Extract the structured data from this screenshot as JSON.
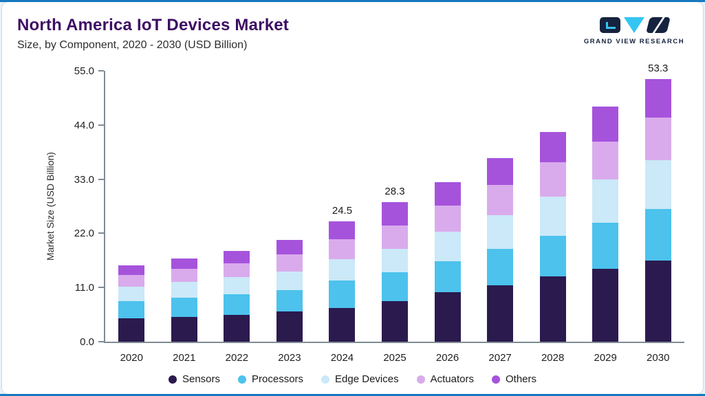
{
  "header": {
    "title": "North America IoT Devices Market",
    "subtitle": "Size, by Component, 2020 - 2030 (USD Billion)"
  },
  "logo": {
    "text": "GRAND VIEW RESEARCH"
  },
  "colors": {
    "title_color": "#3d0e63",
    "frame_accent": "#1779c0",
    "logo_navy": "#15233f",
    "logo_cyan": "#35c5f2"
  },
  "chart_data": {
    "type": "bar",
    "stacked": true,
    "title": "North America IoT Devices Market",
    "subtitle": "Size, by Component, 2020 - 2030 (USD Billion)",
    "xlabel": "",
    "ylabel": "Market Size (USD Billion)",
    "ylim": [
      0,
      55
    ],
    "ytick_labels": [
      "0.0",
      "11.0",
      "22.0",
      "33.0",
      "44.0",
      "55.0"
    ],
    "grid": false,
    "legend_position": "bottom",
    "categories": [
      "2020",
      "2021",
      "2022",
      "2023",
      "2024",
      "2025",
      "2026",
      "2027",
      "2028",
      "2029",
      "2030"
    ],
    "series": [
      {
        "name": "Sensors",
        "color": "#2b1a4e",
        "values": [
          4.7,
          5.0,
          5.5,
          6.1,
          6.9,
          8.3,
          10.0,
          11.5,
          13.2,
          14.8,
          16.5
        ]
      },
      {
        "name": "Processors",
        "color": "#4cc2ed",
        "values": [
          3.6,
          3.9,
          4.2,
          4.4,
          5.5,
          5.8,
          6.3,
          7.3,
          8.3,
          9.3,
          10.4
        ]
      },
      {
        "name": "Edge Devices",
        "color": "#cbe9f8",
        "values": [
          2.9,
          3.2,
          3.4,
          3.8,
          4.3,
          4.7,
          6.0,
          6.9,
          7.9,
          8.8,
          9.9
        ]
      },
      {
        "name": "Actuators",
        "color": "#d9abec",
        "values": [
          2.4,
          2.7,
          2.8,
          3.4,
          4.1,
          4.8,
          5.3,
          6.1,
          7.0,
          7.8,
          8.7
        ]
      },
      {
        "name": "Others",
        "color": "#a653dc",
        "values": [
          1.9,
          2.1,
          2.5,
          3.0,
          3.7,
          4.7,
          4.8,
          5.5,
          6.2,
          7.0,
          7.8
        ]
      }
    ],
    "bar_labels": [
      "",
      "",
      "",
      "",
      "24.5",
      "28.3",
      "",
      "",
      "",
      "",
      "53.3"
    ],
    "totals": [
      15.5,
      16.9,
      18.4,
      20.7,
      24.5,
      28.3,
      32.4,
      37.3,
      42.6,
      47.7,
      53.3
    ]
  }
}
